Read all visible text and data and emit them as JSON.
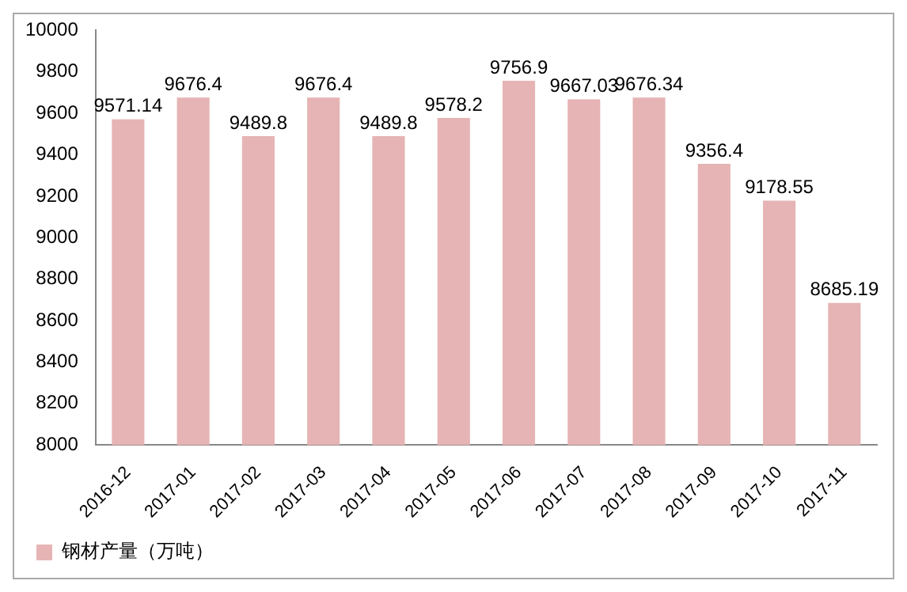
{
  "chart_data": {
    "type": "bar",
    "categories": [
      "2016-12",
      "2017-01",
      "2017-02",
      "2017-03",
      "2017-04",
      "2017-05",
      "2017-06",
      "2017-07",
      "2017-08",
      "2017-09",
      "2017-10",
      "2017-11"
    ],
    "series": [
      {
        "name": "钢材产量（万吨）",
        "color": "#e6b4b4",
        "values": [
          9571.14,
          9676.4,
          9489.8,
          9676.4,
          9489.8,
          9578.2,
          9756.9,
          9667.03,
          9676.34,
          9356.4,
          9178.55,
          8685.19
        ]
      }
    ],
    "ylim": [
      8000,
      10000
    ],
    "yticks": [
      8000,
      8200,
      8400,
      8600,
      8800,
      9000,
      9200,
      9400,
      9600,
      9800,
      10000
    ],
    "grid": false,
    "legend": "bottom",
    "data_labels": true
  }
}
